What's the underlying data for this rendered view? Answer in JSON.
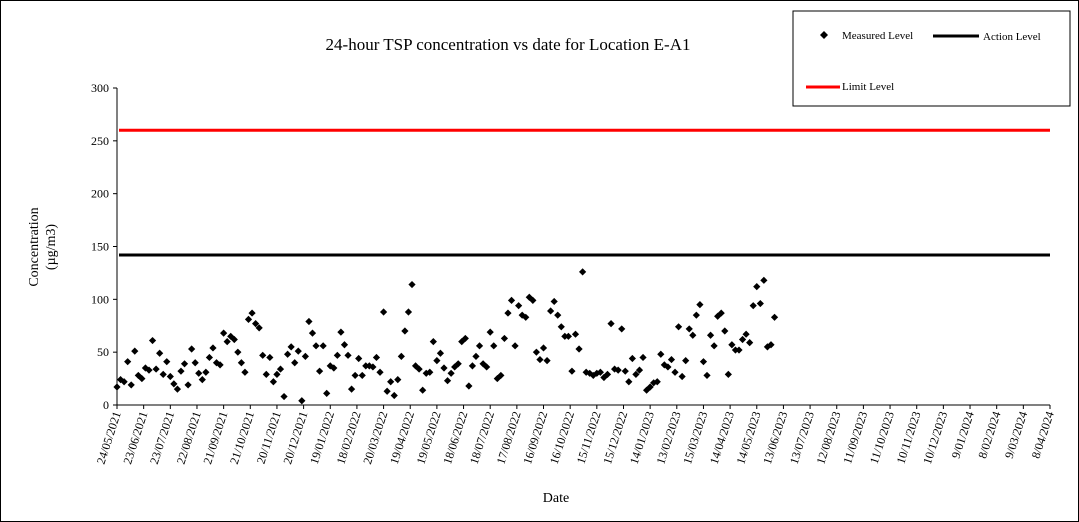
{
  "chart_data": {
    "type": "scatter",
    "title": "24-hour TSP concentration vs date for Location E-A1",
    "xlabel": "Date",
    "ylabel_line1": "Concentration",
    "ylabel_line2": "(µg/m3)",
    "ylim": [
      0,
      300
    ],
    "y_ticks": [
      "0",
      "50",
      "100",
      "150",
      "200",
      "250",
      "300"
    ],
    "x_range": [
      "2021-05-24",
      "2024-04-08"
    ],
    "x_ticks": [
      "24/05/2021",
      "23/06/2021",
      "23/07/2021",
      "22/08/2021",
      "21/09/2021",
      "21/10/2021",
      "20/11/2021",
      "20/12/2021",
      "19/01/2022",
      "18/02/2022",
      "20/03/2022",
      "19/04/2022",
      "19/05/2022",
      "18/06/2022",
      "18/07/2022",
      "17/08/2022",
      "16/09/2022",
      "16/10/2022",
      "15/11/2022",
      "15/12/2022",
      "14/01/2023",
      "13/02/2023",
      "15/03/2023",
      "14/04/2023",
      "14/05/2023",
      "13/06/2023",
      "13/07/2023",
      "12/08/2023",
      "11/09/2023",
      "11/10/2023",
      "10/11/2023",
      "10/12/2023",
      "9/01/2024",
      "8/02/2024",
      "9/03/2024",
      "8/04/2024"
    ],
    "grid": false,
    "legend_placement": "top-right",
    "series": [
      {
        "name": "Measured Level",
        "marker": "diamond",
        "color": "#000000",
        "points": [
          [
            "2021-05-24",
            17
          ],
          [
            "2021-05-28",
            24
          ],
          [
            "2021-06-01",
            22
          ],
          [
            "2021-06-05",
            41
          ],
          [
            "2021-06-09",
            19
          ],
          [
            "2021-06-13",
            51
          ],
          [
            "2021-06-17",
            28
          ],
          [
            "2021-06-21",
            25
          ],
          [
            "2021-06-25",
            35
          ],
          [
            "2021-06-29",
            33
          ],
          [
            "2021-07-03",
            61
          ],
          [
            "2021-07-07",
            34
          ],
          [
            "2021-07-11",
            49
          ],
          [
            "2021-07-15",
            29
          ],
          [
            "2021-07-19",
            41
          ],
          [
            "2021-07-23",
            27
          ],
          [
            "2021-07-27",
            20
          ],
          [
            "2021-07-31",
            15
          ],
          [
            "2021-08-04",
            32
          ],
          [
            "2021-08-08",
            39
          ],
          [
            "2021-08-12",
            19
          ],
          [
            "2021-08-16",
            53
          ],
          [
            "2021-08-20",
            40
          ],
          [
            "2021-08-24",
            30
          ],
          [
            "2021-08-28",
            24
          ],
          [
            "2021-09-01",
            31
          ],
          [
            "2021-09-05",
            45
          ],
          [
            "2021-09-09",
            54
          ],
          [
            "2021-09-13",
            40
          ],
          [
            "2021-09-17",
            38
          ],
          [
            "2021-09-21",
            68
          ],
          [
            "2021-09-25",
            60
          ],
          [
            "2021-09-29",
            65
          ],
          [
            "2021-10-03",
            62
          ],
          [
            "2021-10-07",
            50
          ],
          [
            "2021-10-11",
            40
          ],
          [
            "2021-10-15",
            31
          ],
          [
            "2021-10-19",
            81
          ],
          [
            "2021-10-23",
            87
          ],
          [
            "2021-10-27",
            77
          ],
          [
            "2021-10-31",
            73
          ],
          [
            "2021-11-04",
            47
          ],
          [
            "2021-11-08",
            29
          ],
          [
            "2021-11-12",
            45
          ],
          [
            "2021-11-16",
            22
          ],
          [
            "2021-11-20",
            29
          ],
          [
            "2021-11-24",
            34
          ],
          [
            "2021-11-28",
            8
          ],
          [
            "2021-12-02",
            48
          ],
          [
            "2021-12-06",
            55
          ],
          [
            "2021-12-10",
            40
          ],
          [
            "2021-12-14",
            51
          ],
          [
            "2021-12-18",
            4
          ],
          [
            "2021-12-22",
            46
          ],
          [
            "2021-12-26",
            79
          ],
          [
            "2021-12-30",
            68
          ],
          [
            "2022-01-03",
            56
          ],
          [
            "2022-01-07",
            32
          ],
          [
            "2022-01-11",
            56
          ],
          [
            "2022-01-15",
            11
          ],
          [
            "2022-01-19",
            37
          ],
          [
            "2022-01-23",
            35
          ],
          [
            "2022-01-27",
            47
          ],
          [
            "2022-01-31",
            69
          ],
          [
            "2022-02-04",
            57
          ],
          [
            "2022-02-08",
            47
          ],
          [
            "2022-02-12",
            15
          ],
          [
            "2022-02-16",
            28
          ],
          [
            "2022-02-20",
            44
          ],
          [
            "2022-02-24",
            28
          ],
          [
            "2022-02-28",
            37
          ],
          [
            "2022-03-04",
            37
          ],
          [
            "2022-03-08",
            36
          ],
          [
            "2022-03-12",
            45
          ],
          [
            "2022-03-16",
            31
          ],
          [
            "2022-03-20",
            88
          ],
          [
            "2022-03-24",
            13
          ],
          [
            "2022-03-28",
            22
          ],
          [
            "2022-04-01",
            9
          ],
          [
            "2022-04-05",
            24
          ],
          [
            "2022-04-09",
            46
          ],
          [
            "2022-04-13",
            70
          ],
          [
            "2022-04-17",
            88
          ],
          [
            "2022-04-21",
            114
          ],
          [
            "2022-04-25",
            37
          ],
          [
            "2022-04-29",
            34
          ],
          [
            "2022-05-03",
            14
          ],
          [
            "2022-05-07",
            30
          ],
          [
            "2022-05-11",
            31
          ],
          [
            "2022-05-15",
            60
          ],
          [
            "2022-05-19",
            42
          ],
          [
            "2022-05-23",
            49
          ],
          [
            "2022-05-27",
            35
          ],
          [
            "2022-05-31",
            23
          ],
          [
            "2022-06-04",
            30
          ],
          [
            "2022-06-08",
            36
          ],
          [
            "2022-06-12",
            39
          ],
          [
            "2022-06-16",
            60
          ],
          [
            "2022-06-20",
            63
          ],
          [
            "2022-06-24",
            18
          ],
          [
            "2022-06-28",
            37
          ],
          [
            "2022-07-02",
            46
          ],
          [
            "2022-07-06",
            56
          ],
          [
            "2022-07-10",
            39
          ],
          [
            "2022-07-14",
            36
          ],
          [
            "2022-07-18",
            69
          ],
          [
            "2022-07-22",
            56
          ],
          [
            "2022-07-26",
            25
          ],
          [
            "2022-07-30",
            28
          ],
          [
            "2022-08-03",
            63
          ],
          [
            "2022-08-07",
            87
          ],
          [
            "2022-08-11",
            99
          ],
          [
            "2022-08-15",
            56
          ],
          [
            "2022-08-19",
            94
          ],
          [
            "2022-08-23",
            85
          ],
          [
            "2022-08-27",
            83
          ],
          [
            "2022-08-31",
            102
          ],
          [
            "2022-09-04",
            99
          ],
          [
            "2022-09-08",
            50
          ],
          [
            "2022-09-12",
            43
          ],
          [
            "2022-09-16",
            54
          ],
          [
            "2022-09-20",
            42
          ],
          [
            "2022-09-24",
            89
          ],
          [
            "2022-09-28",
            98
          ],
          [
            "2022-10-02",
            85
          ],
          [
            "2022-10-06",
            74
          ],
          [
            "2022-10-10",
            65
          ],
          [
            "2022-10-14",
            65
          ],
          [
            "2022-10-18",
            32
          ],
          [
            "2022-10-22",
            67
          ],
          [
            "2022-10-26",
            53
          ],
          [
            "2022-10-30",
            126
          ],
          [
            "2022-11-03",
            31
          ],
          [
            "2022-11-07",
            30
          ],
          [
            "2022-11-11",
            28
          ],
          [
            "2022-11-15",
            30
          ],
          [
            "2022-11-19",
            31
          ],
          [
            "2022-11-23",
            26
          ],
          [
            "2022-11-27",
            29
          ],
          [
            "2022-12-01",
            77
          ],
          [
            "2022-12-05",
            34
          ],
          [
            "2022-12-09",
            33
          ],
          [
            "2022-12-13",
            72
          ],
          [
            "2022-12-17",
            32
          ],
          [
            "2022-12-21",
            22
          ],
          [
            "2022-12-25",
            44
          ],
          [
            "2022-12-29",
            29
          ],
          [
            "2023-01-02",
            33
          ],
          [
            "2023-01-06",
            45
          ],
          [
            "2023-01-10",
            14
          ],
          [
            "2023-01-14",
            17
          ],
          [
            "2023-01-18",
            21
          ],
          [
            "2023-01-22",
            22
          ],
          [
            "2023-01-26",
            48
          ],
          [
            "2023-01-30",
            38
          ],
          [
            "2023-02-03",
            36
          ],
          [
            "2023-02-07",
            43
          ],
          [
            "2023-02-11",
            31
          ],
          [
            "2023-02-15",
            74
          ],
          [
            "2023-02-19",
            27
          ],
          [
            "2023-02-23",
            42
          ],
          [
            "2023-02-27",
            72
          ],
          [
            "2023-03-03",
            66
          ],
          [
            "2023-03-07",
            85
          ],
          [
            "2023-03-11",
            95
          ],
          [
            "2023-03-15",
            41
          ],
          [
            "2023-03-19",
            28
          ],
          [
            "2023-03-23",
            66
          ],
          [
            "2023-03-27",
            56
          ],
          [
            "2023-03-31",
            84
          ],
          [
            "2023-04-04",
            87
          ],
          [
            "2023-04-08",
            70
          ],
          [
            "2023-04-12",
            29
          ],
          [
            "2023-04-16",
            57
          ],
          [
            "2023-04-20",
            52
          ],
          [
            "2023-04-24",
            52
          ],
          [
            "2023-04-28",
            62
          ],
          [
            "2023-05-02",
            67
          ],
          [
            "2023-05-06",
            59
          ],
          [
            "2023-05-10",
            94
          ],
          [
            "2023-05-14",
            112
          ],
          [
            "2023-05-18",
            96
          ],
          [
            "2023-05-22",
            118
          ],
          [
            "2023-05-26",
            55
          ],
          [
            "2023-05-30",
            57
          ],
          [
            "2023-06-03",
            83
          ]
        ]
      },
      {
        "name": "Action Level",
        "line": true,
        "color": "#000000",
        "value": 142
      },
      {
        "name": "Limit Level",
        "line": true,
        "color": "#ff0000",
        "value": 260
      }
    ]
  }
}
